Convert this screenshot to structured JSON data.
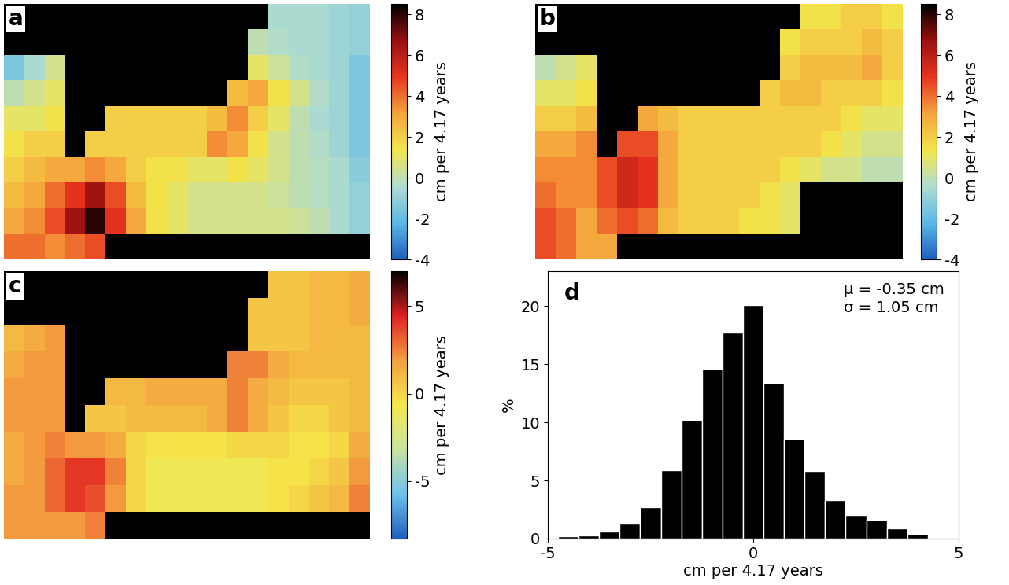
{
  "chart_data": [
    {
      "type": "heatmap",
      "panel_label": "a",
      "tick_labels": false,
      "clim": [
        -4,
        8.5
      ],
      "colorbar_ticks": [
        -4,
        -2,
        0,
        2,
        4,
        6,
        8
      ],
      "colorbar_label": "cm per 4.17 years",
      "cells": [
        [
          null,
          null,
          null,
          null,
          null,
          null,
          null,
          null,
          null,
          null,
          null,
          null,
          null,
          -0.5,
          -0.5,
          -0.5,
          -0.8,
          -1
        ],
        [
          null,
          null,
          null,
          null,
          null,
          null,
          null,
          null,
          null,
          null,
          null,
          null,
          0,
          -0.3,
          -0.5,
          -0.5,
          -0.8,
          -1
        ],
        [
          -1.5,
          -0.5,
          0.5,
          null,
          null,
          null,
          null,
          null,
          null,
          null,
          null,
          null,
          1,
          0.3,
          -0.3,
          -0.5,
          -0.8,
          -1.5
        ],
        [
          0,
          0.5,
          1,
          null,
          null,
          null,
          null,
          null,
          null,
          null,
          null,
          2.5,
          3,
          1.5,
          0.5,
          -0.3,
          -0.8,
          -1.5
        ],
        [
          1,
          1,
          1.5,
          null,
          null,
          2,
          2,
          2,
          2,
          2,
          2.5,
          3.5,
          2,
          1,
          0,
          -0.5,
          -0.8,
          -1.5
        ],
        [
          1.5,
          2,
          2,
          null,
          2,
          2,
          2,
          2,
          2,
          2,
          3.5,
          3,
          1.5,
          0.5,
          0,
          -0.3,
          -0.8,
          -1.5
        ],
        [
          2,
          2.5,
          3,
          3,
          3.5,
          3,
          2,
          1.5,
          1.5,
          1,
          1,
          1.5,
          1,
          0.5,
          0,
          -0.2,
          -0.5,
          -1.2
        ],
        [
          2.5,
          3,
          4,
          5,
          6.5,
          4.5,
          2.5,
          1.5,
          1,
          0.5,
          0.5,
          0.5,
          0.5,
          0.3,
          0,
          -0.2,
          -0.5,
          -1
        ],
        [
          3,
          3.5,
          4.5,
          6.5,
          8,
          5,
          3,
          1.5,
          1,
          0.5,
          0.5,
          0.5,
          0.5,
          0.5,
          0.3,
          0,
          -0.5,
          -1
        ],
        [
          4,
          4,
          3.5,
          4,
          4.5,
          null,
          null,
          null,
          null,
          null,
          null,
          null,
          null,
          null,
          null,
          null,
          null,
          null
        ]
      ]
    },
    {
      "type": "heatmap",
      "panel_label": "b",
      "tick_labels": false,
      "clim": [
        -4,
        8.5
      ],
      "colorbar_ticks": [
        -4,
        -2,
        0,
        2,
        4,
        6,
        8
      ],
      "colorbar_label": "cm per 4.17 years",
      "cells": [
        [
          null,
          null,
          null,
          null,
          null,
          null,
          null,
          null,
          null,
          null,
          null,
          null,
          null,
          1.5,
          1.5,
          2,
          2,
          1.5
        ],
        [
          null,
          null,
          null,
          null,
          null,
          null,
          null,
          null,
          null,
          null,
          null,
          null,
          1.5,
          2,
          2,
          2,
          2.5,
          2
        ],
        [
          0,
          0.5,
          1,
          null,
          null,
          null,
          null,
          null,
          null,
          null,
          null,
          null,
          2,
          2.5,
          2.5,
          2.5,
          3,
          2
        ],
        [
          1,
          1,
          1.5,
          null,
          null,
          null,
          null,
          null,
          null,
          null,
          null,
          2,
          2.5,
          2.5,
          2,
          2,
          2,
          1.5
        ],
        [
          2,
          2,
          2.5,
          null,
          null,
          3,
          2.5,
          2,
          2,
          2,
          2,
          2,
          2,
          2,
          2,
          1.5,
          1,
          1
        ],
        [
          3,
          3,
          3.5,
          null,
          4.5,
          4.5,
          3,
          2,
          2,
          2,
          2,
          2,
          2,
          2,
          1.5,
          1,
          0.5,
          0.5
        ],
        [
          3.5,
          3.5,
          3.5,
          4.5,
          5.5,
          5,
          3,
          2,
          2,
          2,
          2,
          2,
          1.5,
          1,
          0.5,
          0.5,
          0,
          0
        ],
        [
          4,
          3.5,
          3.5,
          4.5,
          5.5,
          5,
          3,
          2,
          2,
          2,
          2,
          1.5,
          1,
          null,
          null,
          null,
          null,
          null
        ],
        [
          4.5,
          4,
          3,
          4,
          4.5,
          4,
          2.5,
          2,
          2,
          2,
          1.5,
          1.5,
          1,
          null,
          null,
          null,
          null,
          null
        ],
        [
          4.5,
          4,
          3,
          3,
          null,
          null,
          null,
          null,
          null,
          null,
          null,
          null,
          null,
          null,
          null,
          null,
          null,
          null
        ]
      ]
    },
    {
      "type": "heatmap",
      "panel_label": "c",
      "tick_labels": false,
      "clim": [
        -8.3,
        7
      ],
      "colorbar_ticks": [
        -5,
        0,
        5
      ],
      "colorbar_label": "cm per 4.17 years",
      "cells": [
        [
          null,
          null,
          null,
          null,
          null,
          null,
          null,
          null,
          null,
          null,
          null,
          null,
          null,
          0.5,
          0.5,
          1,
          1,
          1.5
        ],
        [
          null,
          null,
          null,
          null,
          null,
          null,
          null,
          null,
          null,
          null,
          null,
          null,
          0.5,
          0.5,
          0.5,
          1,
          1,
          1.5
        ],
        [
          1,
          1.5,
          2,
          null,
          null,
          null,
          null,
          null,
          null,
          null,
          null,
          null,
          0.5,
          0.5,
          0.5,
          1,
          1,
          1
        ],
        [
          1.5,
          2,
          2,
          null,
          null,
          null,
          null,
          null,
          null,
          null,
          null,
          2.5,
          2.5,
          1.5,
          1,
          1,
          1,
          1
        ],
        [
          2,
          2,
          2,
          null,
          null,
          1,
          1,
          1.5,
          1.5,
          1.5,
          1.5,
          2.5,
          1.5,
          1,
          0.5,
          0.5,
          0.5,
          1
        ],
        [
          2,
          2,
          2,
          null,
          0.5,
          0.5,
          1,
          1,
          1,
          1,
          1.5,
          2.5,
          1.5,
          0.5,
          0,
          0,
          0.5,
          1
        ],
        [
          1.5,
          2,
          2.5,
          2,
          2,
          1.5,
          0,
          -0.5,
          -0.5,
          -0.5,
          -0.5,
          0,
          0,
          0,
          -0.5,
          -0.5,
          0,
          1.5
        ],
        [
          1.5,
          2,
          3,
          4,
          4,
          2.5,
          0,
          -1,
          -1,
          -1,
          -1,
          -1,
          -1,
          -0.5,
          -0.5,
          0,
          0.5,
          2
        ],
        [
          2,
          2,
          3,
          4,
          3.5,
          2,
          0,
          -1,
          -1,
          -1,
          -1,
          -1,
          -1,
          -0.5,
          0,
          0.5,
          1,
          2.5
        ],
        [
          2,
          2,
          2,
          2,
          2.5,
          null,
          null,
          null,
          null,
          null,
          null,
          null,
          null,
          null,
          null,
          null,
          null,
          null
        ]
      ]
    },
    {
      "type": "histogram",
      "panel_label": "d",
      "color": "#000000",
      "bins": [
        -4.75,
        -4.25,
        -3.75,
        -3.25,
        -2.75,
        -2.25,
        -1.75,
        -1.25,
        -0.75,
        -0.25,
        0.25,
        0.75,
        1.25,
        1.75,
        2.25,
        2.75,
        3.25,
        3.75,
        4.25,
        4.75
      ],
      "values": [
        0.2,
        0.3,
        0.6,
        1.3,
        2.7,
        5.9,
        10.2,
        14.6,
        17.7,
        20.1,
        13.4,
        8.6,
        5.8,
        3.3,
        2.0,
        1.6,
        0.9,
        0.4,
        0.1
      ],
      "xlim": [
        -5,
        5
      ],
      "xticks": [
        -5,
        0,
        5
      ],
      "ylim": [
        0,
        23
      ],
      "yticks": [
        0,
        5,
        10,
        15,
        20
      ],
      "x_label": "cm per 4.17 years",
      "y_label": "%",
      "annotations": [
        "μ = -0.35 cm",
        "σ = 1.05 cm"
      ]
    }
  ]
}
